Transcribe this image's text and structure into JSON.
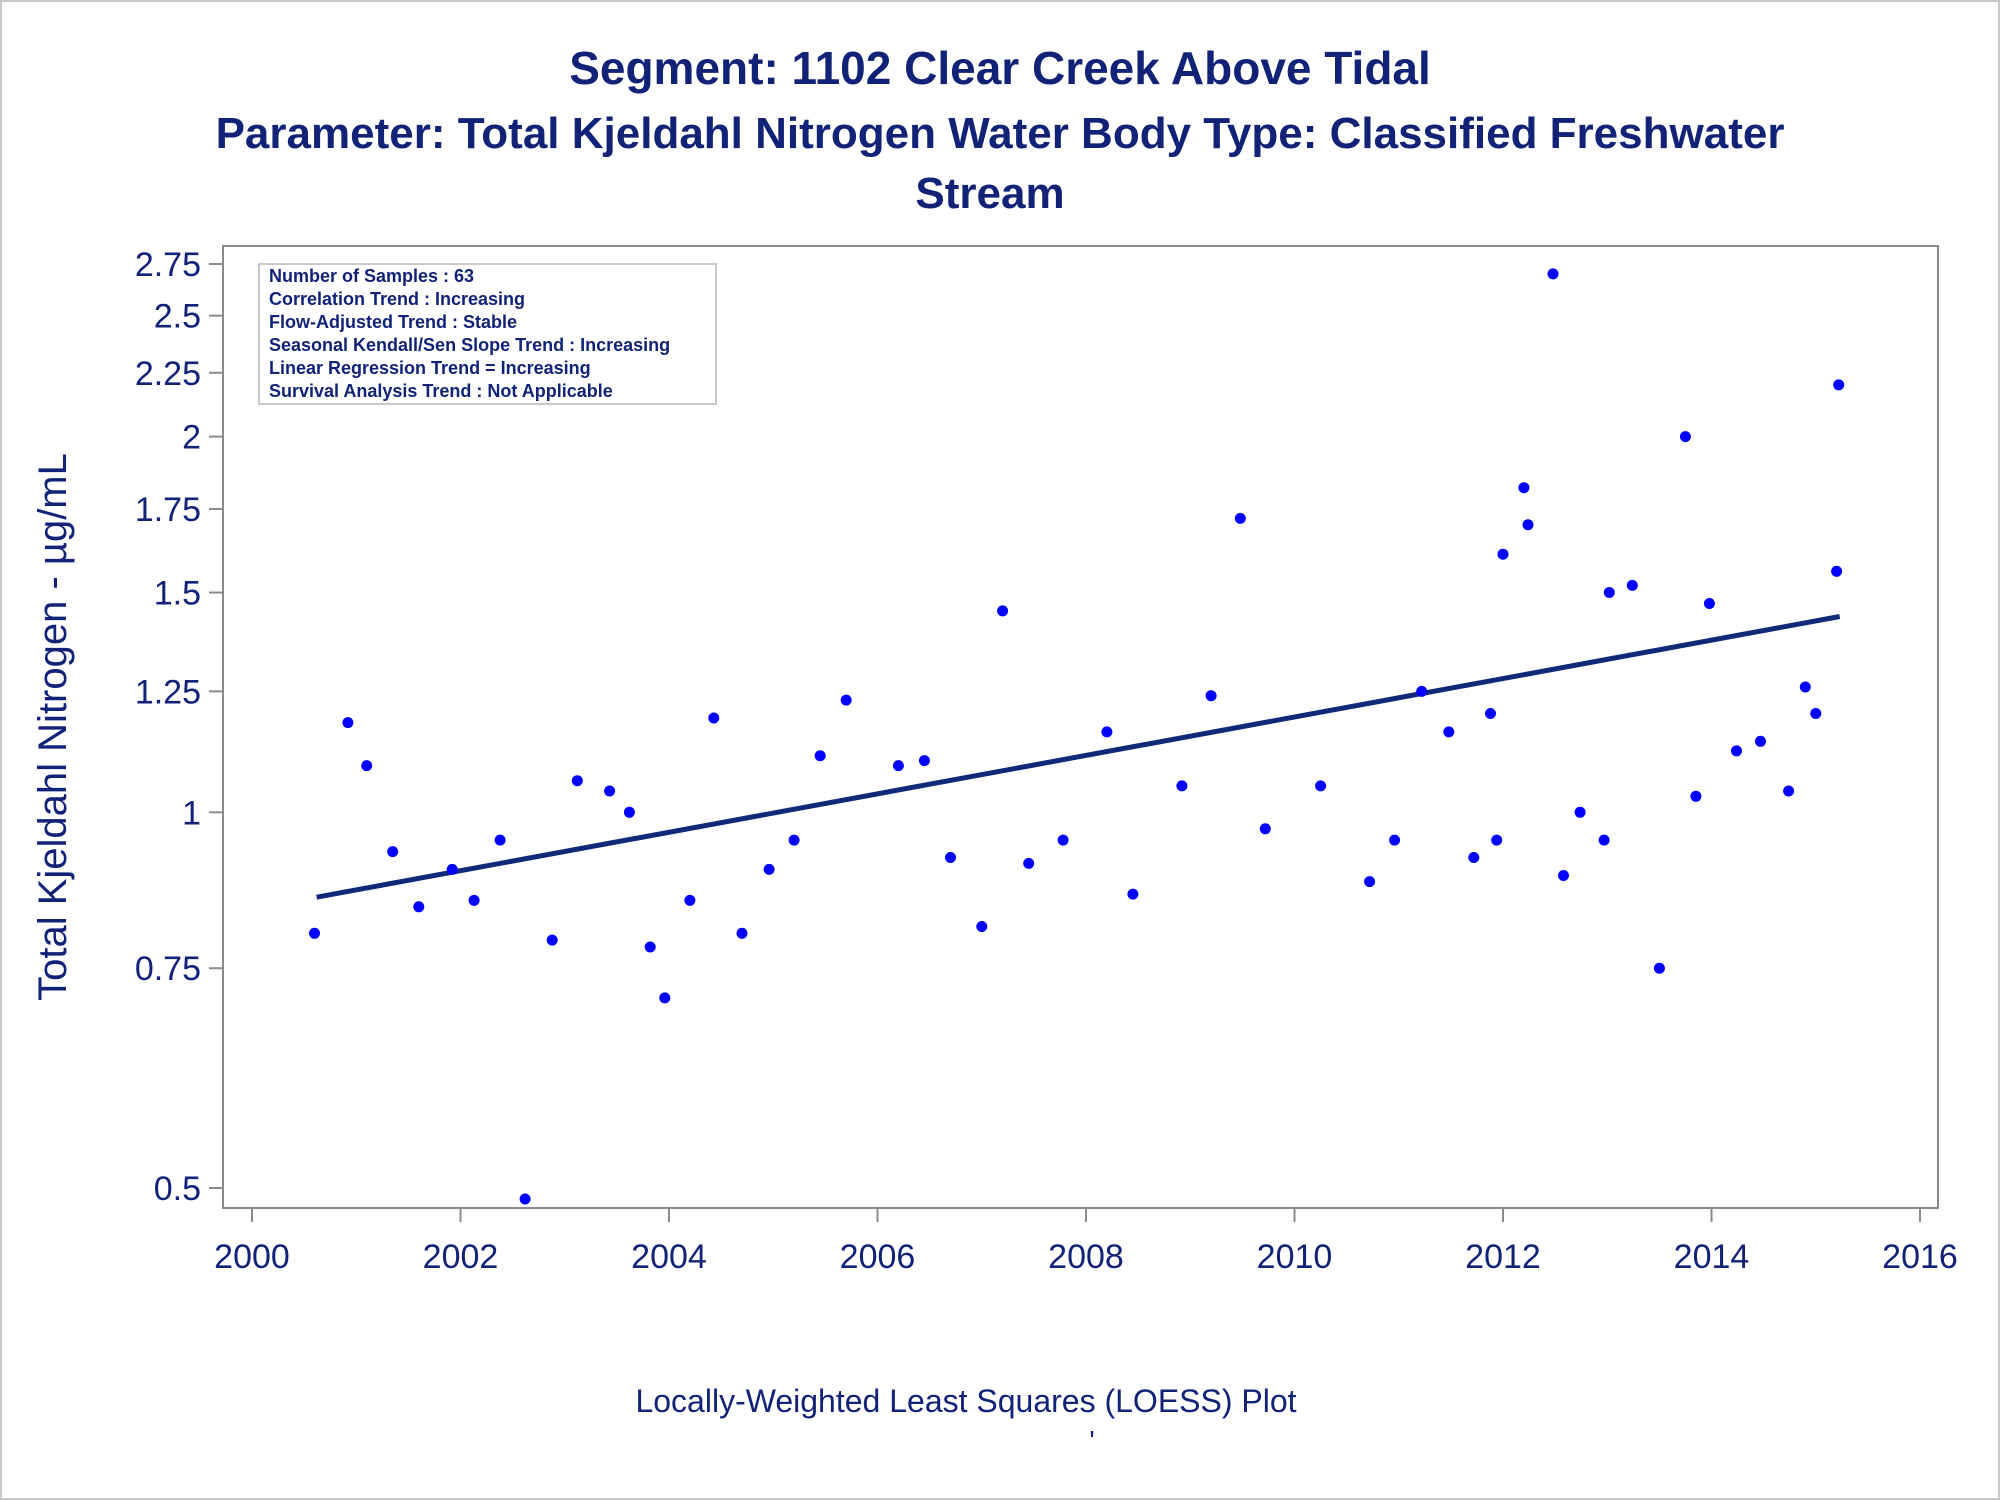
{
  "titles": {
    "line1": "Segment: 1102  Clear Creek Above Tidal",
    "line2": "Parameter: Total Kjeldahl Nitrogen   Water Body Type: Classified Freshwater",
    "line3": "Stream"
  },
  "footnote": {
    "text": "Locally-Weighted Least Squares (LOESS) Plot",
    "mark": "'"
  },
  "info_box": {
    "lines": [
      "Number of Samples : 63",
      "Correlation Trend : Increasing",
      "Flow-Adjusted Trend : Stable",
      "Seasonal Kendall/Sen Slope Trend : Increasing",
      "Linear Regression Trend = Increasing",
      "Survival Analysis Trend : Not Applicable"
    ]
  },
  "colors": {
    "text": "#112277",
    "points": "#0000ff",
    "trend_line": "#0e2a78",
    "axis": "#8a8a8a",
    "box_border": "#c8c8c8"
  },
  "chart_data": {
    "type": "scatter",
    "ylabel": "Total Kjeldahl Nitrogen -  µg/mL",
    "xlabel": "",
    "y_scale": "log",
    "xlim": [
      2000,
      2016
    ],
    "ylim": [
      0.49,
      2.8
    ],
    "x_ticks": [
      2000,
      2002,
      2004,
      2006,
      2008,
      2010,
      2012,
      2014,
      2016
    ],
    "x_tick_labels": [
      "2000",
      "2002",
      "2004",
      "2006",
      "2008",
      "2010",
      "2012",
      "2014",
      "2016"
    ],
    "y_ticks": [
      0.5,
      0.75,
      1,
      1.25,
      1.5,
      1.75,
      2,
      2.25,
      2.5,
      2.75
    ],
    "y_tick_labels": [
      "0.5",
      "0.75",
      "1",
      "1.25",
      "1.5",
      "1.75",
      "2",
      "2.25",
      "2.5",
      "2.75"
    ],
    "grid": false,
    "legend": "none",
    "info_box_position": "top-left",
    "series": [
      {
        "type": "scatter",
        "points": [
          [
            2000.6,
            0.8
          ],
          [
            2000.92,
            1.18
          ],
          [
            2001.1,
            1.09
          ],
          [
            2001.35,
            0.93
          ],
          [
            2001.6,
            0.84
          ],
          [
            2001.92,
            0.9
          ],
          [
            2002.13,
            0.85
          ],
          [
            2002.38,
            0.95
          ],
          [
            2002.62,
            0.49
          ],
          [
            2002.88,
            0.79
          ],
          [
            2003.12,
            1.06
          ],
          [
            2003.43,
            1.04
          ],
          [
            2003.62,
            1.0
          ],
          [
            2003.82,
            0.78
          ],
          [
            2003.96,
            0.71
          ],
          [
            2004.2,
            0.85
          ],
          [
            2004.43,
            1.19
          ],
          [
            2004.7,
            0.8
          ],
          [
            2004.96,
            0.9
          ],
          [
            2005.2,
            0.95
          ],
          [
            2005.45,
            1.11
          ],
          [
            2005.7,
            1.23
          ],
          [
            2006.2,
            1.09
          ],
          [
            2006.45,
            1.1
          ],
          [
            2006.7,
            0.92
          ],
          [
            2007.0,
            0.81
          ],
          [
            2007.2,
            1.45
          ],
          [
            2007.45,
            0.91
          ],
          [
            2007.78,
            0.95
          ],
          [
            2008.2,
            1.16
          ],
          [
            2008.45,
            0.86
          ],
          [
            2008.92,
            1.05
          ],
          [
            2009.2,
            1.24
          ],
          [
            2009.48,
            1.72
          ],
          [
            2009.72,
            0.97
          ],
          [
            2010.25,
            1.05
          ],
          [
            2010.72,
            0.88
          ],
          [
            2010.96,
            0.95
          ],
          [
            2011.22,
            1.25
          ],
          [
            2011.48,
            1.16
          ],
          [
            2011.72,
            0.92
          ],
          [
            2011.88,
            1.2
          ],
          [
            2011.94,
            0.95
          ],
          [
            2012.0,
            1.61
          ],
          [
            2012.2,
            1.82
          ],
          [
            2012.24,
            1.7
          ],
          [
            2012.48,
            2.7
          ],
          [
            2012.58,
            0.89
          ],
          [
            2012.74,
            1.0
          ],
          [
            2012.97,
            0.95
          ],
          [
            2013.02,
            1.5
          ],
          [
            2013.24,
            1.52
          ],
          [
            2013.5,
            0.75
          ],
          [
            2013.75,
            2.0
          ],
          [
            2013.85,
            1.03
          ],
          [
            2013.98,
            1.47
          ],
          [
            2014.24,
            1.12
          ],
          [
            2014.47,
            1.14
          ],
          [
            2014.74,
            1.04
          ],
          [
            2014.9,
            1.26
          ],
          [
            2015.0,
            1.2
          ],
          [
            2015.2,
            1.56
          ],
          [
            2015.22,
            2.2
          ]
        ]
      },
      {
        "type": "line",
        "points": [
          [
            2000.62,
            0.855
          ],
          [
            2015.23,
            1.435
          ]
        ]
      }
    ]
  }
}
